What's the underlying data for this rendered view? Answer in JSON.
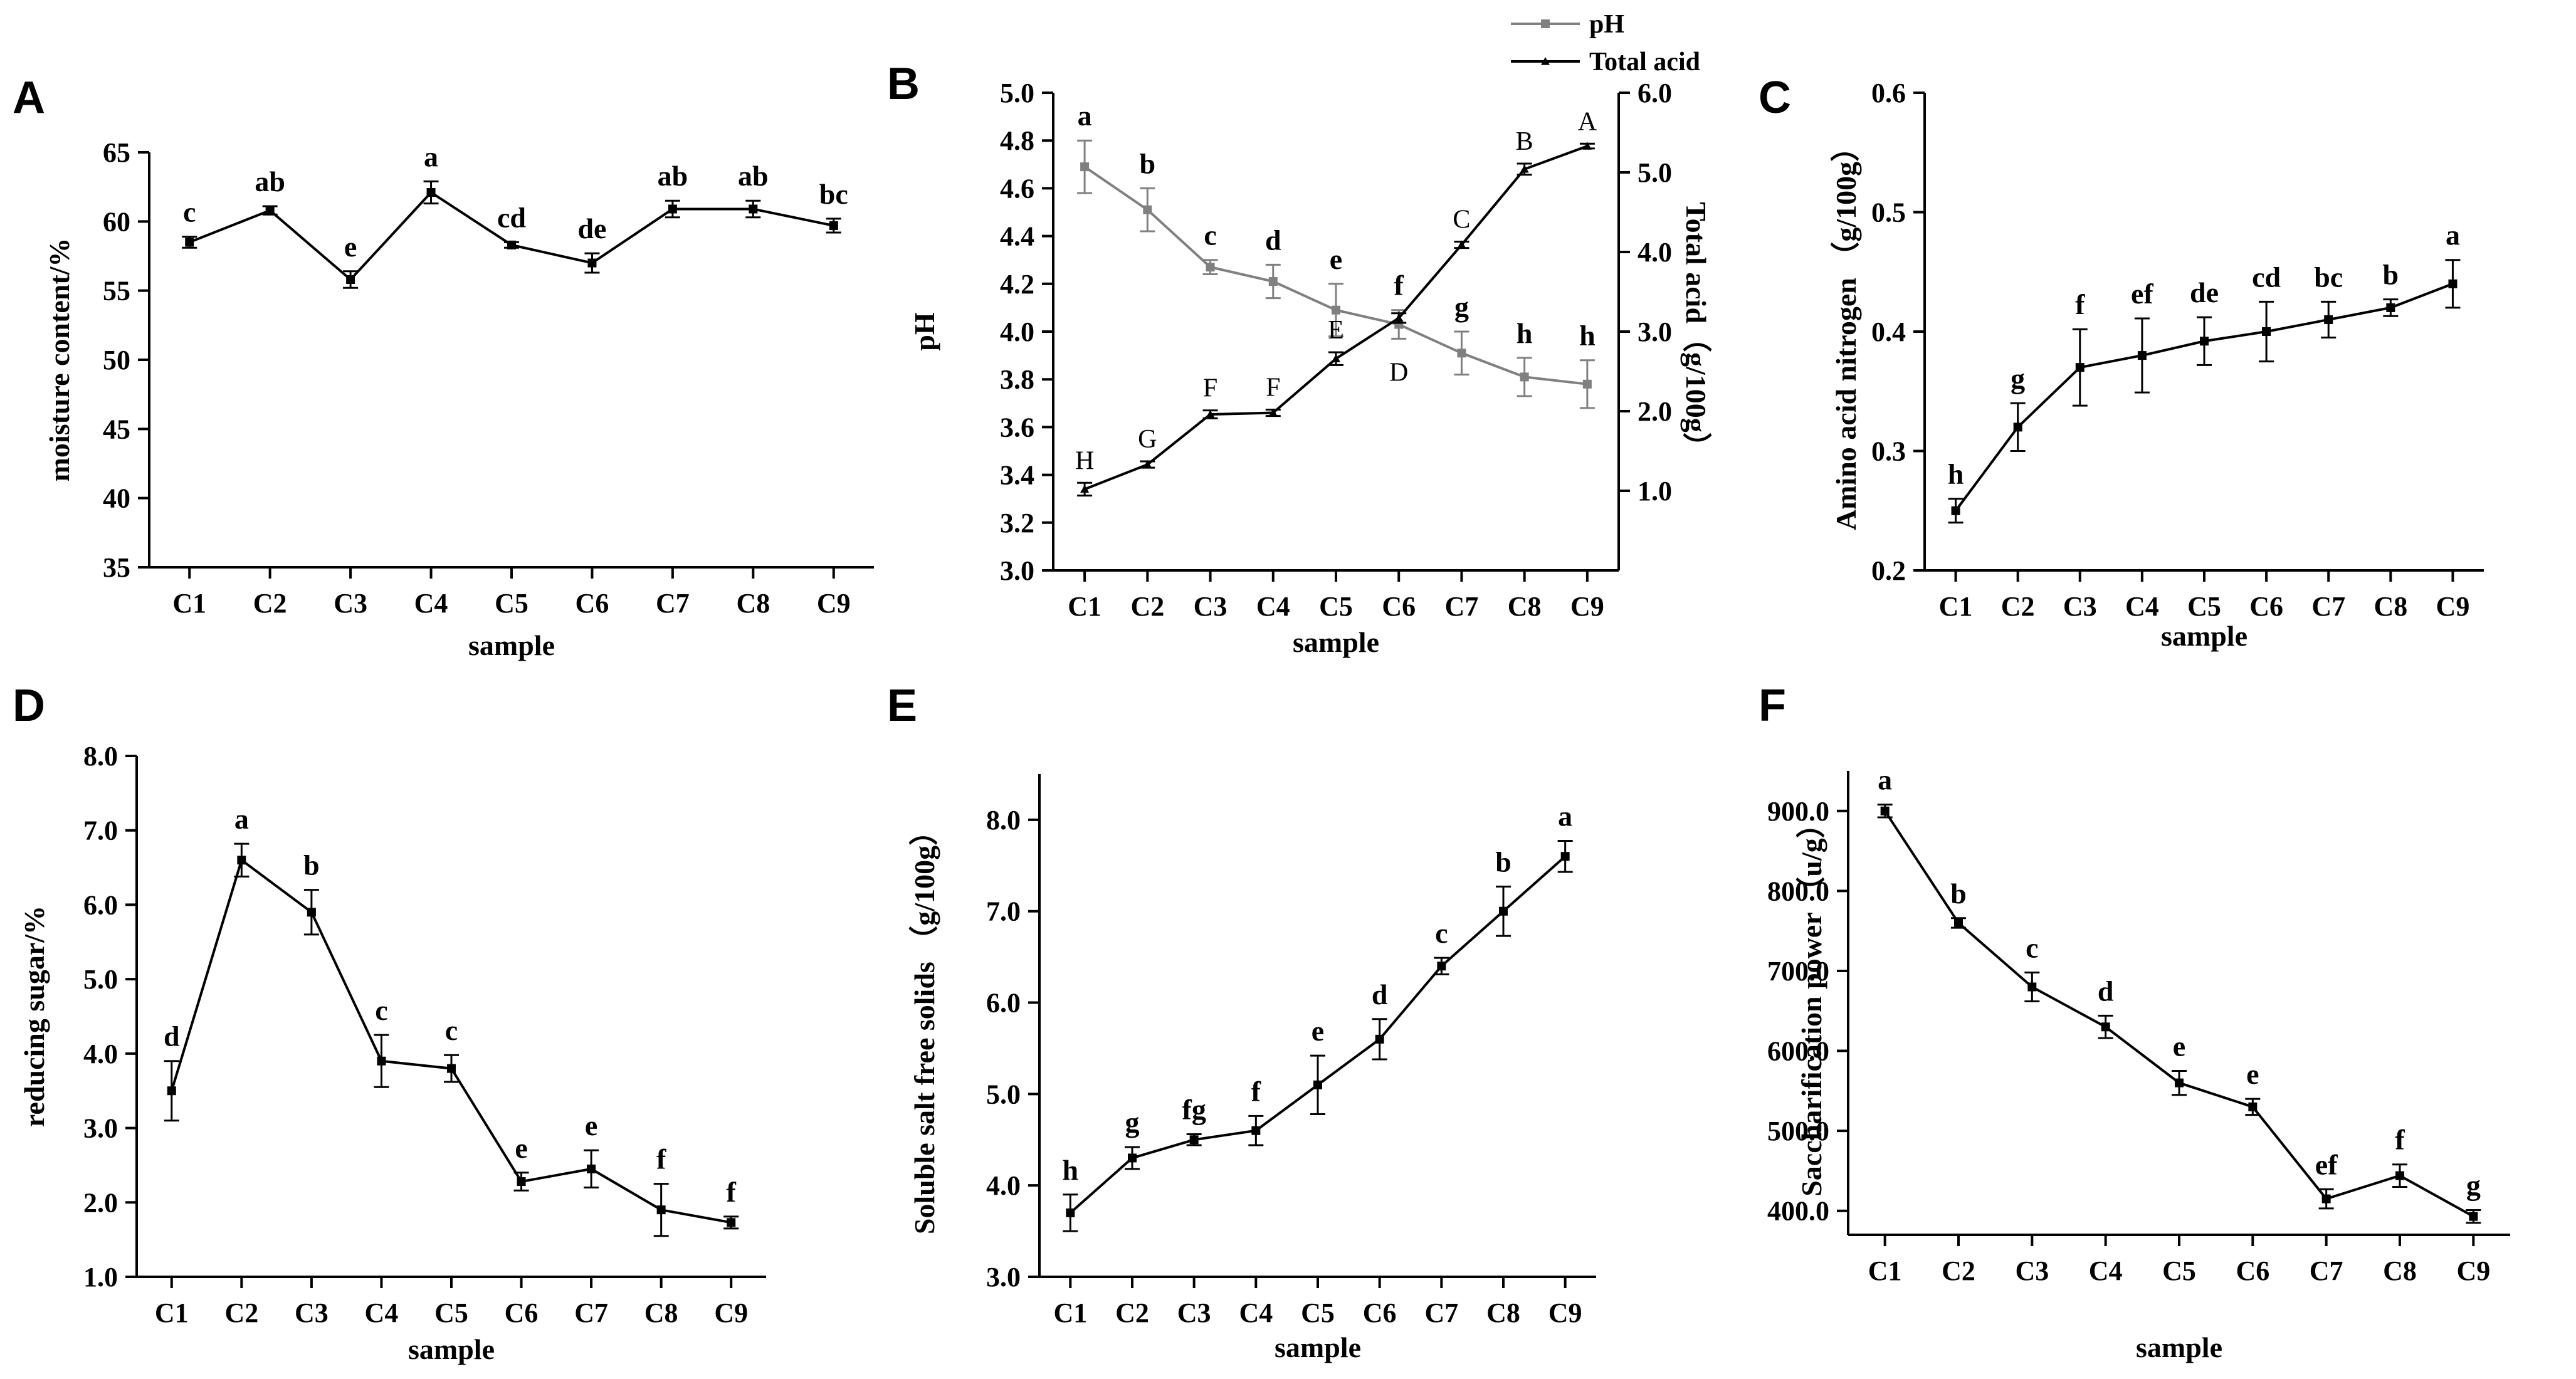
{
  "chart_data": [
    {
      "id": "A",
      "type": "line",
      "panel_label": "A",
      "xlabel": "sample",
      "ylabel": "moisture content/%",
      "categories": [
        "C1",
        "C2",
        "C3",
        "C4",
        "C5",
        "C6",
        "C7",
        "C8",
        "C9"
      ],
      "ylim": [
        35,
        65
      ],
      "yticks": [
        "35",
        "40",
        "45",
        "50",
        "55",
        "60",
        "65"
      ],
      "series": [
        {
          "values": [
            58.5,
            60.8,
            55.8,
            62.1,
            58.3,
            57.0,
            60.9,
            60.9,
            59.7
          ],
          "errors": [
            0.4,
            0.3,
            0.6,
            0.8,
            0.2,
            0.7,
            0.6,
            0.6,
            0.5
          ],
          "labels": [
            "c",
            "ab",
            "e",
            "a",
            "cd",
            "de",
            "ab",
            "ab",
            "bc"
          ],
          "color": "#000000",
          "marker": "square"
        }
      ]
    },
    {
      "id": "B",
      "type": "line",
      "panel_label": "B",
      "xlabel": "sample",
      "ylabel": "pH",
      "ylabel_right": "Total acid（g/100g）",
      "categories": [
        "C1",
        "C2",
        "C3",
        "C4",
        "C5",
        "C6",
        "C7",
        "C8",
        "C9"
      ],
      "ylim": [
        3.0,
        5.0
      ],
      "yticks": [
        "3.0",
        "3.2",
        "3.4",
        "3.6",
        "3.8",
        "4.0",
        "4.2",
        "4.4",
        "4.6",
        "4.8",
        "5.0"
      ],
      "ylim_right": [
        0.0,
        6.0
      ],
      "yticks_right": [
        "1.0",
        "2.0",
        "3.0",
        "4.0",
        "5.0",
        "6.0"
      ],
      "legend_position": "top",
      "series": [
        {
          "name": "pH",
          "axis": "left",
          "values": [
            4.69,
            4.51,
            4.27,
            4.21,
            4.09,
            4.03,
            3.91,
            3.81,
            3.78
          ],
          "errors": [
            0.11,
            0.09,
            0.03,
            0.07,
            0.11,
            0.06,
            0.09,
            0.08,
            0.1
          ],
          "labels": [
            "a",
            "b",
            "c",
            "d",
            "e",
            "f",
            "g",
            "h",
            "h"
          ],
          "color": "#808080",
          "marker": "square"
        },
        {
          "name": "Total acid",
          "axis": "right",
          "values": [
            1.02,
            1.33,
            1.96,
            1.98,
            2.66,
            3.17,
            4.09,
            5.04,
            5.33
          ],
          "errors": [
            0.08,
            0.04,
            0.05,
            0.04,
            0.08,
            0.06,
            0.04,
            0.07,
            0.03
          ],
          "labels": [
            "H",
            "G",
            "F",
            "F",
            "E",
            "D",
            "C",
            "B",
            "A"
          ],
          "color": "#000000",
          "marker": "triangle"
        }
      ]
    },
    {
      "id": "C",
      "type": "line",
      "panel_label": "C",
      "xlabel": "sample",
      "ylabel": "Amino acid nitrogen （g/100g）",
      "categories": [
        "C1",
        "C2",
        "C3",
        "C4",
        "C5",
        "C6",
        "C7",
        "C8",
        "C9"
      ],
      "ylim": [
        0.2,
        0.6
      ],
      "yticks": [
        "0.2",
        "0.3",
        "0.4",
        "0.5",
        "0.6"
      ],
      "series": [
        {
          "values": [
            0.25,
            0.32,
            0.37,
            0.38,
            0.392,
            0.4,
            0.41,
            0.42,
            0.44
          ],
          "errors": [
            0.01,
            0.02,
            0.032,
            0.031,
            0.02,
            0.025,
            0.015,
            0.007,
            0.02
          ],
          "labels": [
            "h",
            "g",
            "f",
            "ef",
            "de",
            "cd",
            "bc",
            "b",
            "a"
          ],
          "color": "#000000",
          "marker": "square"
        }
      ]
    },
    {
      "id": "D",
      "type": "line",
      "panel_label": "D",
      "xlabel": "sample",
      "ylabel": "reducing sugar/%",
      "categories": [
        "C1",
        "C2",
        "C3",
        "C4",
        "C5",
        "C6",
        "C7",
        "C8",
        "C9"
      ],
      "ylim": [
        1.0,
        8.0
      ],
      "yticks": [
        "1.0",
        "2.0",
        "3.0",
        "4.0",
        "5.0",
        "6.0",
        "7.0",
        "8.0"
      ],
      "series": [
        {
          "values": [
            3.5,
            6.6,
            5.9,
            3.9,
            3.8,
            2.28,
            2.45,
            1.9,
            1.73
          ],
          "errors": [
            0.4,
            0.22,
            0.3,
            0.35,
            0.18,
            0.12,
            0.25,
            0.35,
            0.08
          ],
          "labels": [
            "d",
            "a",
            "b",
            "c",
            "c",
            "e",
            "e",
            "f",
            "f"
          ],
          "color": "#000000",
          "marker": "square"
        }
      ]
    },
    {
      "id": "E",
      "type": "line",
      "panel_label": "E",
      "xlabel": "sample",
      "ylabel": "Soluble salt free solids （g/100g）",
      "categories": [
        "C1",
        "C2",
        "C3",
        "C4",
        "C5",
        "C6",
        "C7",
        "C8",
        "C9"
      ],
      "ylim": [
        3.0,
        8.5
      ],
      "yticks": [
        "3.0",
        "4.0",
        "5.0",
        "6.0",
        "7.0",
        "8.0"
      ],
      "series": [
        {
          "values": [
            3.7,
            4.3,
            4.5,
            4.6,
            5.1,
            5.6,
            6.4,
            7.0,
            7.6
          ],
          "errors": [
            0.2,
            0.12,
            0.06,
            0.16,
            0.32,
            0.22,
            0.09,
            0.27,
            0.17
          ],
          "labels": [
            "h",
            "g",
            "fg",
            "f",
            "e",
            "d",
            "c",
            "b",
            "a"
          ],
          "color": "#000000",
          "marker": "square"
        }
      ]
    },
    {
      "id": "F",
      "type": "line",
      "panel_label": "F",
      "xlabel": "sample",
      "ylabel": "Saccharification power （u/g）",
      "categories": [
        "C1",
        "C2",
        "C3",
        "C4",
        "C5",
        "C6",
        "C7",
        "C8",
        "C9"
      ],
      "ylim": [
        370,
        950
      ],
      "yticks": [
        "400.0",
        "500.0",
        "600.0",
        "700.0",
        "800.0",
        "900.0"
      ],
      "series": [
        {
          "values": [
            900,
            760,
            680,
            630,
            560,
            530,
            415,
            444,
            393
          ],
          "errors": [
            8,
            6,
            18,
            14,
            15,
            10,
            12,
            14,
            8
          ],
          "labels": [
            "a",
            "b",
            "c",
            "d",
            "e",
            "e",
            "ef",
            "f",
            "g"
          ],
          "color": "#000000",
          "marker": "square"
        }
      ]
    }
  ]
}
